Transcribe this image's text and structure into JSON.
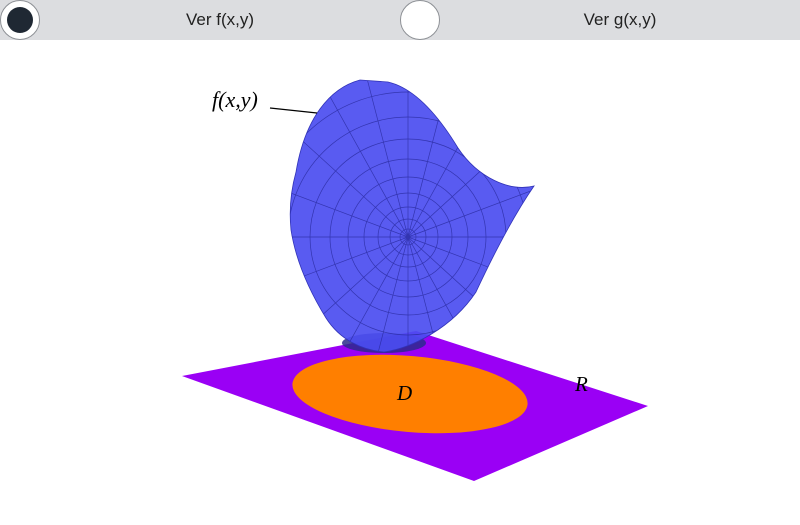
{
  "toolbar": {
    "toggle_f": {
      "label": "Ver f(x,y)",
      "checked": true
    },
    "toggle_g": {
      "label": "Ver g(x,y)",
      "checked": false
    }
  },
  "scene": {
    "surface_label": "f(x,y)",
    "region_label": "D",
    "rectangle_label": "R",
    "colors": {
      "surface": "#4b4df0",
      "surface_mesh": "#27289a",
      "rectangle": "#9a00f5",
      "region": "#ff7f00"
    }
  }
}
